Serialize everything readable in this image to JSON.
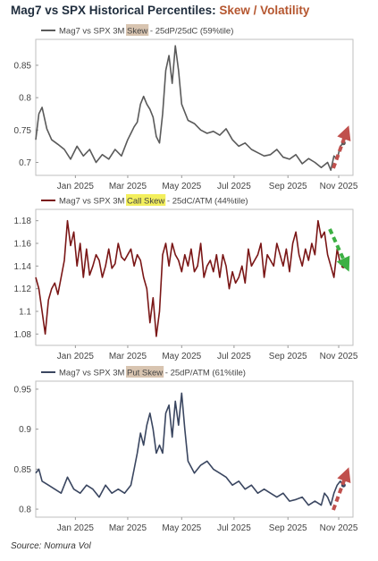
{
  "title": {
    "main": "Mag7 vs SPX Historical Percentiles: ",
    "accent": "Skew / Volatility"
  },
  "source": "Source: Nomura Vol",
  "chart_data": [
    {
      "type": "line",
      "legend": {
        "prefix": "Mag7 vs SPX 3M ",
        "highlight": "Skew",
        "suffix": " - 25dP/25dC (59%tile)"
      },
      "highlight_color": "#d8c4b0",
      "line_color": "#5a5a5a",
      "ylim": [
        0.68,
        0.89
      ],
      "yticks": [
        "0.85",
        "0.8",
        "0.75",
        "0.7"
      ],
      "xticks": [
        "Jan 2025",
        "Mar 2025",
        "May 2025",
        "Jul 2025",
        "Sep 2025",
        "Nov 2025"
      ],
      "xtick_pos": [
        0.125,
        0.29,
        0.46,
        0.625,
        0.795,
        0.955
      ],
      "arrow": {
        "direction": "up",
        "color": "#c0504d"
      },
      "x": [
        0.0,
        0.01,
        0.02,
        0.035,
        0.05,
        0.07,
        0.09,
        0.11,
        0.13,
        0.15,
        0.17,
        0.19,
        0.21,
        0.23,
        0.25,
        0.27,
        0.29,
        0.3,
        0.31,
        0.32,
        0.33,
        0.34,
        0.35,
        0.36,
        0.37,
        0.38,
        0.39,
        0.4,
        0.41,
        0.42,
        0.43,
        0.44,
        0.45,
        0.46,
        0.48,
        0.5,
        0.52,
        0.54,
        0.56,
        0.58,
        0.6,
        0.62,
        0.64,
        0.66,
        0.68,
        0.7,
        0.72,
        0.74,
        0.76,
        0.78,
        0.8,
        0.82,
        0.84,
        0.86,
        0.88,
        0.9,
        0.92,
        0.93,
        0.94,
        0.95,
        0.96,
        0.97
      ],
      "y": [
        0.735,
        0.775,
        0.785,
        0.752,
        0.735,
        0.728,
        0.72,
        0.705,
        0.725,
        0.71,
        0.72,
        0.7,
        0.712,
        0.705,
        0.72,
        0.71,
        0.735,
        0.745,
        0.755,
        0.762,
        0.79,
        0.802,
        0.79,
        0.782,
        0.77,
        0.74,
        0.73,
        0.775,
        0.842,
        0.865,
        0.822,
        0.88,
        0.842,
        0.79,
        0.765,
        0.76,
        0.75,
        0.745,
        0.748,
        0.742,
        0.752,
        0.735,
        0.725,
        0.73,
        0.72,
        0.715,
        0.71,
        0.712,
        0.72,
        0.708,
        0.705,
        0.712,
        0.698,
        0.706,
        0.7,
        0.692,
        0.7,
        0.688,
        0.71,
        0.705,
        0.725,
        0.73
      ]
    },
    {
      "type": "line",
      "legend": {
        "prefix": "Mag7 vs SPX 3M ",
        "highlight": "Call Skew",
        "suffix": " - 25dC/ATM (44%tile)"
      },
      "highlight_color": "#f3ef5c",
      "line_color": "#7a1616",
      "ylim": [
        1.07,
        1.19
      ],
      "yticks": [
        "1.18",
        "1.16",
        "1.14",
        "1.12",
        "1.1",
        "1.08"
      ],
      "xticks": [
        "Jan 2025",
        "Mar 2025",
        "May 2025",
        "Jul 2025",
        "Sep 2025",
        "Nov 2025"
      ],
      "xtick_pos": [
        0.125,
        0.29,
        0.46,
        0.625,
        0.795,
        0.955
      ],
      "arrow": {
        "direction": "down",
        "color": "#3cb043"
      },
      "x": [
        0.0,
        0.01,
        0.02,
        0.03,
        0.04,
        0.05,
        0.06,
        0.07,
        0.08,
        0.09,
        0.1,
        0.11,
        0.12,
        0.13,
        0.14,
        0.15,
        0.16,
        0.17,
        0.18,
        0.19,
        0.2,
        0.21,
        0.22,
        0.23,
        0.24,
        0.25,
        0.26,
        0.27,
        0.28,
        0.29,
        0.3,
        0.31,
        0.32,
        0.33,
        0.34,
        0.35,
        0.36,
        0.37,
        0.38,
        0.39,
        0.4,
        0.41,
        0.42,
        0.43,
        0.44,
        0.45,
        0.46,
        0.47,
        0.48,
        0.49,
        0.5,
        0.51,
        0.52,
        0.53,
        0.54,
        0.55,
        0.56,
        0.57,
        0.58,
        0.59,
        0.6,
        0.61,
        0.62,
        0.63,
        0.64,
        0.65,
        0.66,
        0.67,
        0.68,
        0.69,
        0.7,
        0.71,
        0.72,
        0.73,
        0.74,
        0.75,
        0.76,
        0.77,
        0.78,
        0.79,
        0.8,
        0.81,
        0.82,
        0.83,
        0.84,
        0.85,
        0.86,
        0.87,
        0.88,
        0.89,
        0.9,
        0.91,
        0.92,
        0.93,
        0.94,
        0.95,
        0.96,
        0.97
      ],
      "y": [
        1.13,
        1.12,
        1.1,
        1.08,
        1.11,
        1.12,
        1.125,
        1.115,
        1.13,
        1.145,
        1.18,
        1.158,
        1.17,
        1.14,
        1.16,
        1.13,
        1.155,
        1.132,
        1.14,
        1.15,
        1.145,
        1.13,
        1.14,
        1.155,
        1.138,
        1.142,
        1.16,
        1.148,
        1.145,
        1.15,
        1.155,
        1.14,
        1.15,
        1.145,
        1.13,
        1.12,
        1.09,
        1.112,
        1.078,
        1.1,
        1.15,
        1.16,
        1.14,
        1.16,
        1.15,
        1.145,
        1.135,
        1.15,
        1.14,
        1.155,
        1.135,
        1.14,
        1.16,
        1.13,
        1.14,
        1.145,
        1.135,
        1.15,
        1.13,
        1.15,
        1.14,
        1.12,
        1.135,
        1.125,
        1.13,
        1.14,
        1.125,
        1.155,
        1.14,
        1.145,
        1.15,
        1.16,
        1.13,
        1.15,
        1.145,
        1.14,
        1.16,
        1.15,
        1.14,
        1.155,
        1.135,
        1.16,
        1.17,
        1.15,
        1.14,
        1.155,
        1.145,
        1.16,
        1.15,
        1.18,
        1.165,
        1.17,
        1.15,
        1.14,
        1.13,
        1.155,
        1.142,
        1.14
      ]
    },
    {
      "type": "line",
      "legend": {
        "prefix": "Mag7 vs SPX 3M ",
        "highlight": "Put Skew",
        "suffix": " - 25dP/ATM (61%tile)"
      },
      "highlight_color": "#d8c4b0",
      "line_color": "#3a4660",
      "ylim": [
        0.79,
        0.96
      ],
      "yticks": [
        "0.95",
        "0.9",
        "0.85",
        "0.8"
      ],
      "xticks": [
        "Jan 2025",
        "Mar 2025",
        "May 2025",
        "Jul 2025",
        "Sep 2025",
        "Nov 2025"
      ],
      "xtick_pos": [
        0.125,
        0.29,
        0.46,
        0.625,
        0.795,
        0.955
      ],
      "arrow": {
        "direction": "up",
        "color": "#c0504d"
      },
      "x": [
        0.0,
        0.01,
        0.02,
        0.04,
        0.06,
        0.08,
        0.1,
        0.12,
        0.14,
        0.16,
        0.18,
        0.2,
        0.22,
        0.24,
        0.26,
        0.28,
        0.3,
        0.31,
        0.32,
        0.33,
        0.34,
        0.35,
        0.36,
        0.37,
        0.38,
        0.39,
        0.4,
        0.41,
        0.42,
        0.43,
        0.44,
        0.45,
        0.46,
        0.47,
        0.48,
        0.5,
        0.52,
        0.54,
        0.56,
        0.58,
        0.6,
        0.62,
        0.64,
        0.66,
        0.68,
        0.7,
        0.72,
        0.74,
        0.76,
        0.78,
        0.8,
        0.82,
        0.84,
        0.86,
        0.88,
        0.9,
        0.91,
        0.92,
        0.93,
        0.94,
        0.95,
        0.96,
        0.97
      ],
      "y": [
        0.845,
        0.85,
        0.835,
        0.83,
        0.825,
        0.82,
        0.84,
        0.825,
        0.82,
        0.83,
        0.825,
        0.815,
        0.83,
        0.82,
        0.825,
        0.82,
        0.83,
        0.85,
        0.87,
        0.895,
        0.88,
        0.905,
        0.92,
        0.9,
        0.87,
        0.88,
        0.87,
        0.92,
        0.93,
        0.89,
        0.935,
        0.905,
        0.945,
        0.9,
        0.86,
        0.845,
        0.855,
        0.86,
        0.85,
        0.845,
        0.84,
        0.83,
        0.835,
        0.825,
        0.83,
        0.82,
        0.825,
        0.82,
        0.815,
        0.82,
        0.81,
        0.812,
        0.815,
        0.805,
        0.81,
        0.805,
        0.82,
        0.815,
        0.805,
        0.82,
        0.83,
        0.835,
        0.83
      ]
    }
  ]
}
